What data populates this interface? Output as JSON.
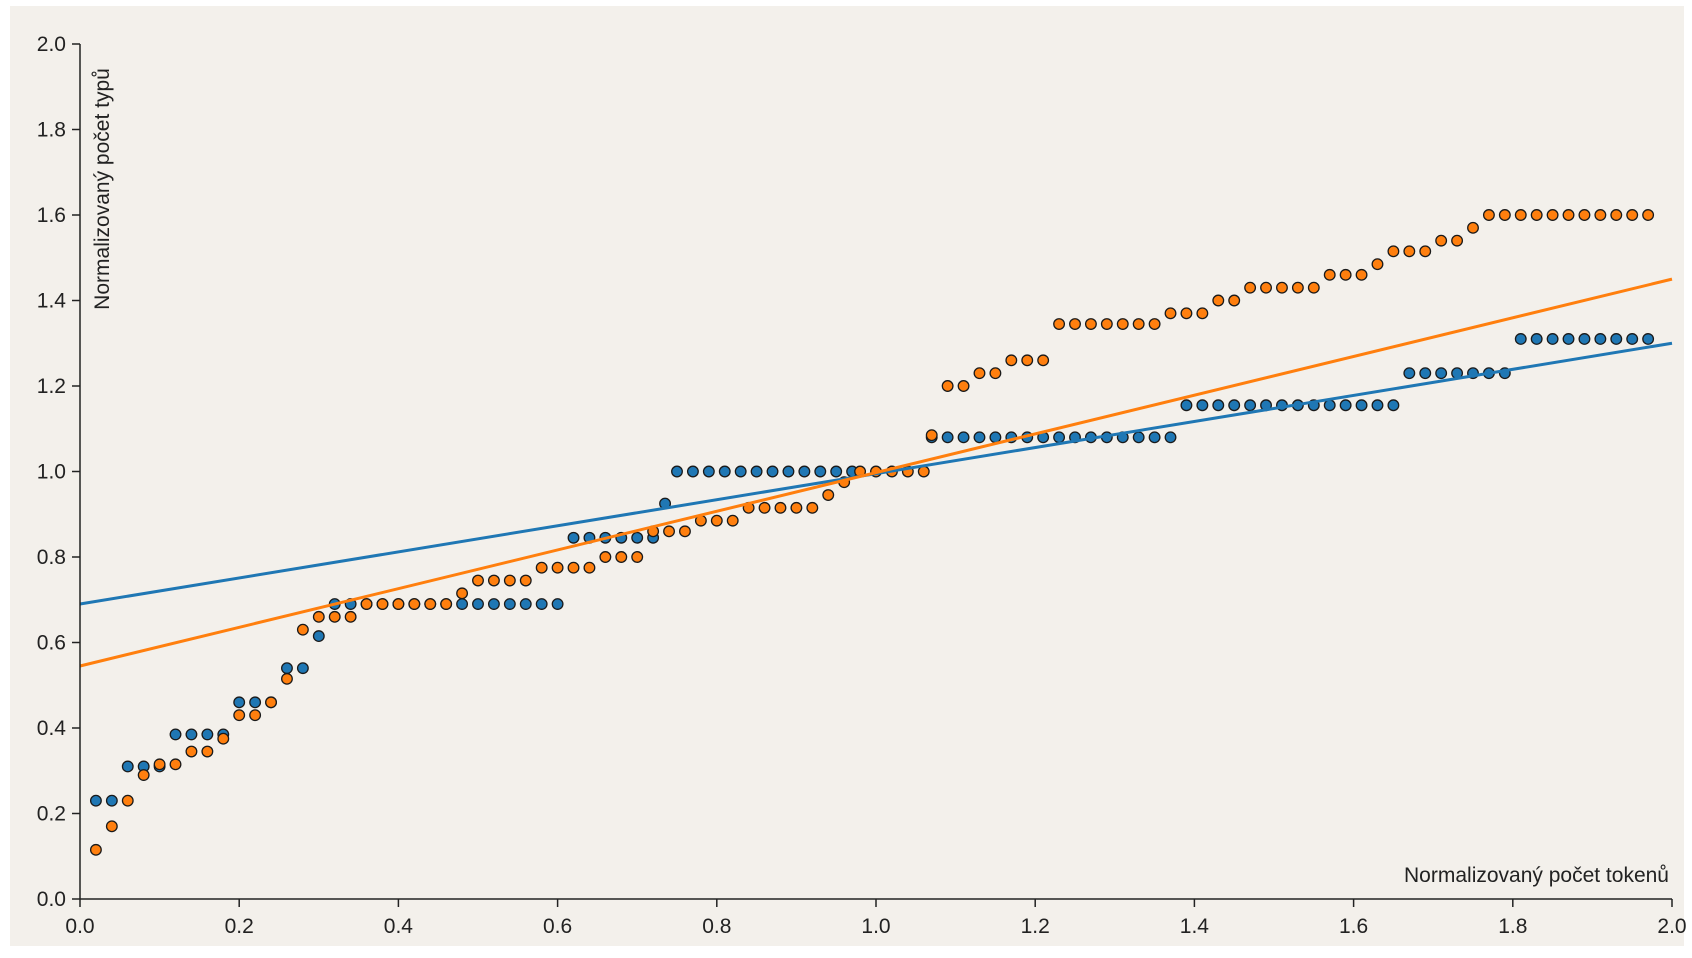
{
  "chart_data": {
    "type": "scatter",
    "title": "",
    "xlabel": "Normalizovaný počet tokenů",
    "ylabel": "Normalizovaný počet typů",
    "xlim": [
      0.0,
      2.0
    ],
    "ylim": [
      0.0,
      2.0
    ],
    "x_ticks": [
      "0.0",
      "0.2",
      "0.4",
      "0.6",
      "0.8",
      "1.0",
      "1.2",
      "1.4",
      "1.6",
      "1.8",
      "2.0"
    ],
    "y_ticks": [
      "0.0",
      "0.2",
      "0.4",
      "0.6",
      "0.8",
      "1.0",
      "1.2",
      "1.4",
      "1.6",
      "1.8",
      "2.0"
    ],
    "grid": false,
    "legend": "none",
    "colors": {
      "background": "#f3f0eb",
      "blue": "#1f77b4",
      "orange": "#ff7f0e",
      "axis": "#222222"
    },
    "series": [
      {
        "color": "#1f77b4",
        "points": [
          [
            0.02,
            0.23
          ],
          [
            0.04,
            0.23
          ],
          [
            0.06,
            0.31
          ],
          [
            0.08,
            0.31
          ],
          [
            0.1,
            0.31
          ],
          [
            0.12,
            0.385
          ],
          [
            0.14,
            0.385
          ],
          [
            0.16,
            0.385
          ],
          [
            0.18,
            0.385
          ],
          [
            0.2,
            0.46
          ],
          [
            0.22,
            0.46
          ],
          [
            0.24,
            0.46
          ],
          [
            0.26,
            0.54
          ],
          [
            0.28,
            0.54
          ],
          [
            0.3,
            0.615
          ],
          [
            0.32,
            0.69
          ],
          [
            0.34,
            0.69
          ],
          [
            0.36,
            0.69
          ],
          [
            0.38,
            0.69
          ],
          [
            0.4,
            0.69
          ],
          [
            0.42,
            0.69
          ],
          [
            0.44,
            0.69
          ],
          [
            0.46,
            0.69
          ],
          [
            0.48,
            0.69
          ],
          [
            0.5,
            0.69
          ],
          [
            0.52,
            0.69
          ],
          [
            0.54,
            0.69
          ],
          [
            0.56,
            0.69
          ],
          [
            0.58,
            0.69
          ],
          [
            0.6,
            0.69
          ],
          [
            0.62,
            0.845
          ],
          [
            0.64,
            0.845
          ],
          [
            0.66,
            0.845
          ],
          [
            0.68,
            0.845
          ],
          [
            0.7,
            0.845
          ],
          [
            0.72,
            0.845
          ],
          [
            0.735,
            0.925
          ],
          [
            0.75,
            1.0
          ],
          [
            0.77,
            1.0
          ],
          [
            0.79,
            1.0
          ],
          [
            0.81,
            1.0
          ],
          [
            0.83,
            1.0
          ],
          [
            0.85,
            1.0
          ],
          [
            0.87,
            1.0
          ],
          [
            0.89,
            1.0
          ],
          [
            0.91,
            1.0
          ],
          [
            0.93,
            1.0
          ],
          [
            0.95,
            1.0
          ],
          [
            0.97,
            1.0
          ],
          [
            1.07,
            1.08
          ],
          [
            1.09,
            1.08
          ],
          [
            1.11,
            1.08
          ],
          [
            1.13,
            1.08
          ],
          [
            1.15,
            1.08
          ],
          [
            1.17,
            1.08
          ],
          [
            1.19,
            1.08
          ],
          [
            1.21,
            1.08
          ],
          [
            1.23,
            1.08
          ],
          [
            1.25,
            1.08
          ],
          [
            1.27,
            1.08
          ],
          [
            1.29,
            1.08
          ],
          [
            1.31,
            1.08
          ],
          [
            1.33,
            1.08
          ],
          [
            1.35,
            1.08
          ],
          [
            1.37,
            1.08
          ],
          [
            1.39,
            1.155
          ],
          [
            1.41,
            1.155
          ],
          [
            1.43,
            1.155
          ],
          [
            1.45,
            1.155
          ],
          [
            1.47,
            1.155
          ],
          [
            1.49,
            1.155
          ],
          [
            1.51,
            1.155
          ],
          [
            1.53,
            1.155
          ],
          [
            1.55,
            1.155
          ],
          [
            1.57,
            1.155
          ],
          [
            1.59,
            1.155
          ],
          [
            1.61,
            1.155
          ],
          [
            1.63,
            1.155
          ],
          [
            1.65,
            1.155
          ],
          [
            1.67,
            1.23
          ],
          [
            1.69,
            1.23
          ],
          [
            1.71,
            1.23
          ],
          [
            1.73,
            1.23
          ],
          [
            1.75,
            1.23
          ],
          [
            1.77,
            1.23
          ],
          [
            1.79,
            1.23
          ],
          [
            1.81,
            1.31
          ],
          [
            1.83,
            1.31
          ],
          [
            1.85,
            1.31
          ],
          [
            1.87,
            1.31
          ],
          [
            1.89,
            1.31
          ],
          [
            1.91,
            1.31
          ],
          [
            1.93,
            1.31
          ],
          [
            1.95,
            1.31
          ],
          [
            1.97,
            1.31
          ]
        ],
        "trend": [
          [
            0.0,
            0.69
          ],
          [
            2.0,
            1.3
          ]
        ]
      },
      {
        "color": "#ff7f0e",
        "points": [
          [
            0.02,
            0.115
          ],
          [
            0.04,
            0.17
          ],
          [
            0.06,
            0.23
          ],
          [
            0.08,
            0.29
          ],
          [
            0.1,
            0.315
          ],
          [
            0.12,
            0.315
          ],
          [
            0.14,
            0.345
          ],
          [
            0.16,
            0.345
          ],
          [
            0.18,
            0.375
          ],
          [
            0.2,
            0.43
          ],
          [
            0.22,
            0.43
          ],
          [
            0.24,
            0.46
          ],
          [
            0.26,
            0.515
          ],
          [
            0.28,
            0.63
          ],
          [
            0.3,
            0.66
          ],
          [
            0.32,
            0.66
          ],
          [
            0.34,
            0.66
          ],
          [
            0.36,
            0.69
          ],
          [
            0.38,
            0.69
          ],
          [
            0.4,
            0.69
          ],
          [
            0.42,
            0.69
          ],
          [
            0.44,
            0.69
          ],
          [
            0.46,
            0.69
          ],
          [
            0.48,
            0.715
          ],
          [
            0.5,
            0.745
          ],
          [
            0.52,
            0.745
          ],
          [
            0.54,
            0.745
          ],
          [
            0.56,
            0.745
          ],
          [
            0.58,
            0.775
          ],
          [
            0.6,
            0.775
          ],
          [
            0.62,
            0.775
          ],
          [
            0.64,
            0.775
          ],
          [
            0.66,
            0.8
          ],
          [
            0.68,
            0.8
          ],
          [
            0.7,
            0.8
          ],
          [
            0.72,
            0.86
          ],
          [
            0.74,
            0.86
          ],
          [
            0.76,
            0.86
          ],
          [
            0.78,
            0.885
          ],
          [
            0.8,
            0.885
          ],
          [
            0.82,
            0.885
          ],
          [
            0.84,
            0.915
          ],
          [
            0.86,
            0.915
          ],
          [
            0.88,
            0.915
          ],
          [
            0.9,
            0.915
          ],
          [
            0.92,
            0.915
          ],
          [
            0.94,
            0.945
          ],
          [
            0.96,
            0.975
          ],
          [
            0.98,
            1.0
          ],
          [
            1.0,
            1.0
          ],
          [
            1.02,
            1.0
          ],
          [
            1.04,
            1.0
          ],
          [
            1.06,
            1.0
          ],
          [
            1.07,
            1.085
          ],
          [
            1.09,
            1.2
          ],
          [
            1.11,
            1.2
          ],
          [
            1.13,
            1.23
          ],
          [
            1.15,
            1.23
          ],
          [
            1.17,
            1.26
          ],
          [
            1.19,
            1.26
          ],
          [
            1.21,
            1.26
          ],
          [
            1.23,
            1.345
          ],
          [
            1.25,
            1.345
          ],
          [
            1.27,
            1.345
          ],
          [
            1.29,
            1.345
          ],
          [
            1.31,
            1.345
          ],
          [
            1.33,
            1.345
          ],
          [
            1.35,
            1.345
          ],
          [
            1.37,
            1.37
          ],
          [
            1.39,
            1.37
          ],
          [
            1.41,
            1.37
          ],
          [
            1.43,
            1.4
          ],
          [
            1.45,
            1.4
          ],
          [
            1.47,
            1.43
          ],
          [
            1.49,
            1.43
          ],
          [
            1.51,
            1.43
          ],
          [
            1.53,
            1.43
          ],
          [
            1.55,
            1.43
          ],
          [
            1.57,
            1.46
          ],
          [
            1.59,
            1.46
          ],
          [
            1.61,
            1.46
          ],
          [
            1.63,
            1.485
          ],
          [
            1.65,
            1.515
          ],
          [
            1.67,
            1.515
          ],
          [
            1.69,
            1.515
          ],
          [
            1.71,
            1.54
          ],
          [
            1.73,
            1.54
          ],
          [
            1.75,
            1.57
          ],
          [
            1.77,
            1.6
          ],
          [
            1.79,
            1.6
          ],
          [
            1.81,
            1.6
          ],
          [
            1.83,
            1.6
          ],
          [
            1.85,
            1.6
          ],
          [
            1.87,
            1.6
          ],
          [
            1.89,
            1.6
          ],
          [
            1.91,
            1.6
          ],
          [
            1.93,
            1.6
          ],
          [
            1.95,
            1.6
          ],
          [
            1.97,
            1.6
          ]
        ],
        "trend": [
          [
            0.0,
            0.545
          ],
          [
            2.0,
            1.45
          ]
        ]
      }
    ]
  }
}
